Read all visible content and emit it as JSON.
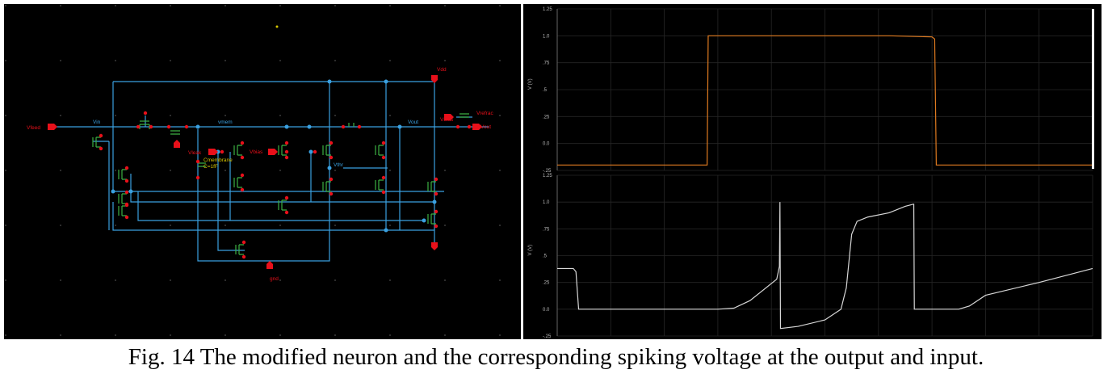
{
  "figure": {
    "caption": "Fig. 14 The modified neuron and the corresponding spiking voltage at the output and input."
  },
  "schematic": {
    "labels": {
      "vfeed": "Vfeed",
      "vin": "Vin",
      "vmem": "vmem",
      "vout": "Vout",
      "vout_pin": "Vout",
      "vdd": "Vdd",
      "vbias": "Vbias",
      "vleak": "Vleak",
      "vthr": "Vthr",
      "cmem": "Cmembrane",
      "cmem_val": "C=1fF",
      "gnd": "gnd",
      "vrefr": "Vrefrac",
      "vbias2": "Vbias"
    },
    "colors": {
      "wire": "#3aa0e0",
      "pin": "#e8101a",
      "device": "#3cb043",
      "label": "#e8101a",
      "grid": "#3a3a3a"
    }
  },
  "chart_data": [
    {
      "type": "line",
      "title": "",
      "xlabel": "",
      "ylabel": "V (V)",
      "ylim": [
        -0.25,
        1.25
      ],
      "y_ticks": [
        "1.25",
        "1.0",
        ".75",
        ".5",
        ".25",
        "0.0",
        "-.25"
      ],
      "grid": true,
      "series": [
        {
          "color": "#e07b20",
          "x": [
            0,
            0.28,
            0.282,
            0.62,
            0.7,
            0.705,
            0.708,
            1
          ],
          "y": [
            -0.2,
            -0.2,
            1.0,
            1.0,
            0.99,
            0.97,
            -0.2,
            -0.2
          ]
        }
      ]
    },
    {
      "type": "line",
      "title": "",
      "xlabel": "",
      "ylabel": "V (V)",
      "ylim": [
        -0.25,
        1.25
      ],
      "y_ticks": [
        "1.25",
        "1.0",
        ".75",
        ".5",
        ".25",
        "0.0",
        "-.25"
      ],
      "grid": true,
      "series": [
        {
          "color": "#d8d8d8",
          "x": [
            0,
            0.03,
            0.035,
            0.04,
            0.2,
            0.3,
            0.33,
            0.36,
            0.41,
            0.415,
            0.416,
            0.417,
            0.45,
            0.5,
            0.53,
            0.54,
            0.55,
            0.56,
            0.58,
            0.62,
            0.65,
            0.665,
            0.666,
            0.667,
            0.75,
            0.77,
            0.8,
            0.9,
            1.0
          ],
          "y": [
            0.38,
            0.38,
            0.35,
            0.0,
            0.0,
            0.0,
            0.01,
            0.08,
            0.28,
            0.4,
            1.0,
            -0.18,
            -0.16,
            -0.1,
            0.0,
            0.2,
            0.7,
            0.82,
            0.86,
            0.9,
            0.96,
            0.98,
            0.98,
            0.0,
            0.0,
            0.03,
            0.13,
            0.25,
            0.38
          ]
        }
      ]
    }
  ]
}
